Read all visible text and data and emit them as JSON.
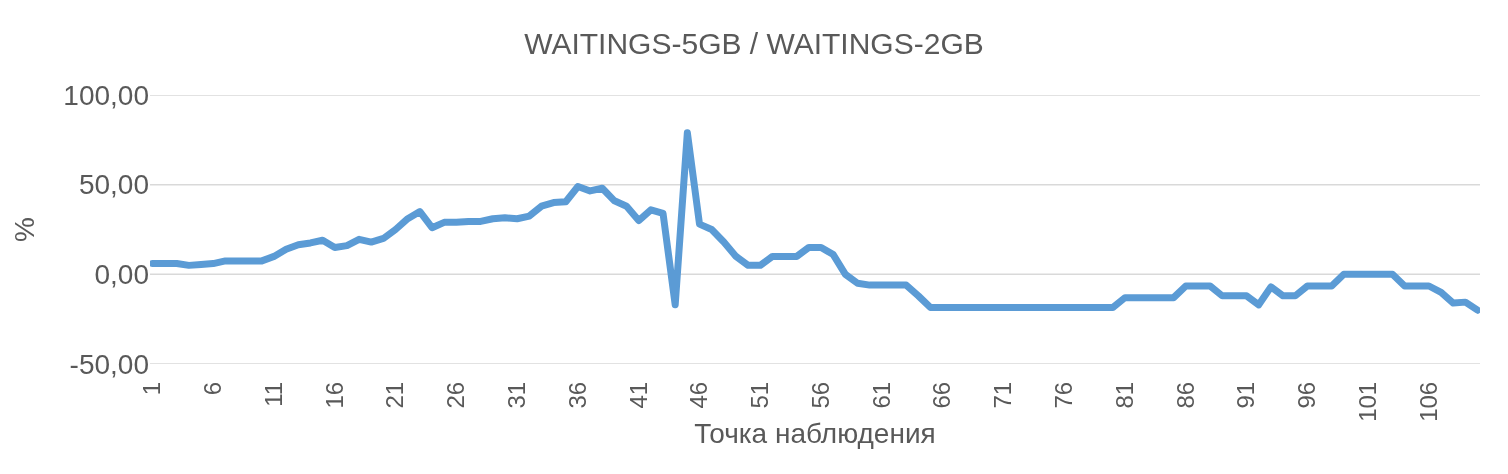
{
  "chart_data": {
    "type": "line",
    "title": "WAITINGS-5GB / WAITINGS-2GB",
    "xlabel": "Точка наблюдения",
    "ylabel": "%",
    "categories": [
      "1",
      null,
      null,
      null,
      null,
      "6",
      null,
      null,
      null,
      null,
      "11",
      null,
      null,
      null,
      null,
      "16",
      null,
      null,
      null,
      null,
      "21",
      null,
      null,
      null,
      null,
      "26",
      null,
      null,
      null,
      null,
      "31",
      null,
      null,
      null,
      null,
      "36",
      null,
      null,
      null,
      null,
      "41",
      null,
      null,
      null,
      null,
      "46",
      null,
      null,
      null,
      null,
      "51",
      null,
      null,
      null,
      null,
      "56",
      null,
      null,
      null,
      null,
      "61",
      null,
      null,
      null,
      null,
      "66",
      null,
      null,
      null,
      null,
      "71",
      null,
      null,
      null,
      null,
      "76",
      null,
      null,
      null,
      null,
      "81",
      null,
      null,
      null,
      null,
      "86",
      null,
      null,
      null,
      null,
      "91",
      null,
      null,
      null,
      null,
      "96",
      null,
      null,
      null,
      null,
      "101",
      null,
      null,
      null,
      null,
      "106",
      null,
      null,
      null,
      null
    ],
    "series": [
      {
        "color": "#5b9bd5",
        "values": [
          6,
          6,
          6,
          5,
          5.5,
          6,
          7.5,
          7.5,
          7.5,
          7.5,
          10,
          14,
          16.5,
          17.5,
          19,
          15,
          16,
          19.5,
          18,
          20,
          25,
          31,
          35,
          26,
          29,
          29,
          29.5,
          29.5,
          31,
          31.5,
          31,
          32.5,
          38,
          40,
          40.5,
          49,
          46.5,
          48,
          41,
          38,
          30,
          36,
          34,
          -17,
          79,
          28,
          25,
          18,
          10,
          5,
          5,
          10,
          10,
          10,
          15,
          15,
          11,
          0,
          -5,
          -6,
          -6,
          -6,
          -6,
          -12,
          -18.5,
          -18.5,
          -18.5,
          -18.5,
          -18.5,
          -18.5,
          -18.5,
          -18.5,
          -18.5,
          -18.5,
          -18.5,
          -18.5,
          -18.5,
          -18.5,
          -18.5,
          -18.5,
          -13,
          -13,
          -13,
          -13,
          -13,
          -6.5,
          -6.5,
          -6.5,
          -12,
          -12,
          -12,
          -17,
          -7,
          -12,
          -12,
          -6.5,
          -6.5,
          -6.5,
          0,
          0,
          0,
          0,
          0,
          -6.5,
          -6.5,
          -6.5,
          -10,
          -16,
          -15.5,
          -20
        ]
      }
    ],
    "ylim": [
      -50,
      100
    ],
    "yticks": [
      {
        "value": -50,
        "label": "-50,00"
      },
      {
        "value": 0,
        "label": "0,00"
      },
      {
        "value": 50,
        "label": "50,00"
      },
      {
        "value": 100,
        "label": "100,00"
      }
    ],
    "grid": "y",
    "marker": "none",
    "line_style": "solid"
  }
}
